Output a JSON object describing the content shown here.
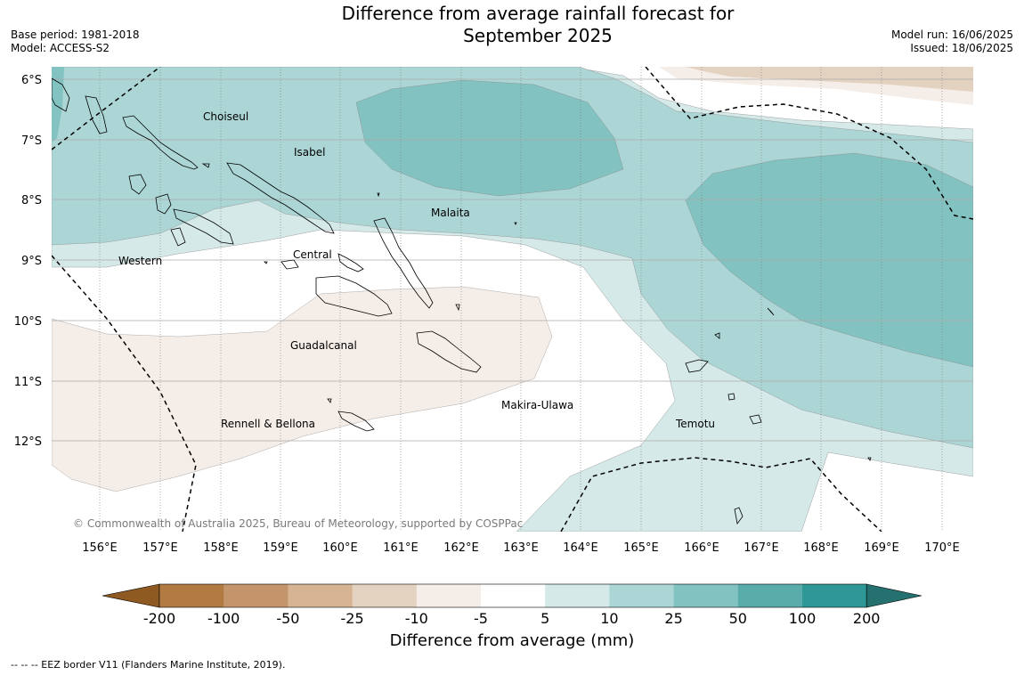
{
  "title_line1": "Difference from average rainfall forecast for",
  "title_line2": "September 2025",
  "base_period": "Base period: 1981-2018",
  "model": "Model: ACCESS-S2",
  "model_run": "Model run: 16/06/2025",
  "issued": "Issued: 18/06/2025",
  "copyright": "© Commonwealth of Australia 2025, Bureau of Meteorology, supported by COSPPac",
  "lat_labels": [
    "6°S",
    "7°S",
    "8°S",
    "9°S",
    "10°S",
    "11°S",
    "12°S"
  ],
  "lon_labels": [
    "156°E",
    "157°E",
    "158°E",
    "159°E",
    "160°E",
    "161°E",
    "162°E",
    "163°E",
    "164°E",
    "165°E",
    "166°E",
    "167°E",
    "168°E",
    "169°E",
    "170°E"
  ],
  "regions": [
    "Choiseul",
    "Isabel",
    "Malaita",
    "Western",
    "Central",
    "Guadalcanal",
    "Rennell & Bellona",
    "Makira-Ulawa",
    "Temotu"
  ],
  "colorbar": {
    "labels": [
      "-200",
      "-100",
      "-50",
      "-25",
      "-10",
      "-5",
      "5",
      "10",
      "25",
      "50",
      "100",
      "200"
    ],
    "colors": [
      "#8f5a22",
      "#b07a41",
      "#c4956b",
      "#d6b393",
      "#e4d2c0",
      "#f5ede7",
      "#ffffff",
      "#d4e9e8",
      "#acd6d5",
      "#82c2c1",
      "#5aacab",
      "#2f9896",
      "#24716f"
    ],
    "title": "Difference from average (mm)"
  },
  "footnote": "--  --  -- EEZ border V11 (Flanders Marine Institute, 2019)."
}
